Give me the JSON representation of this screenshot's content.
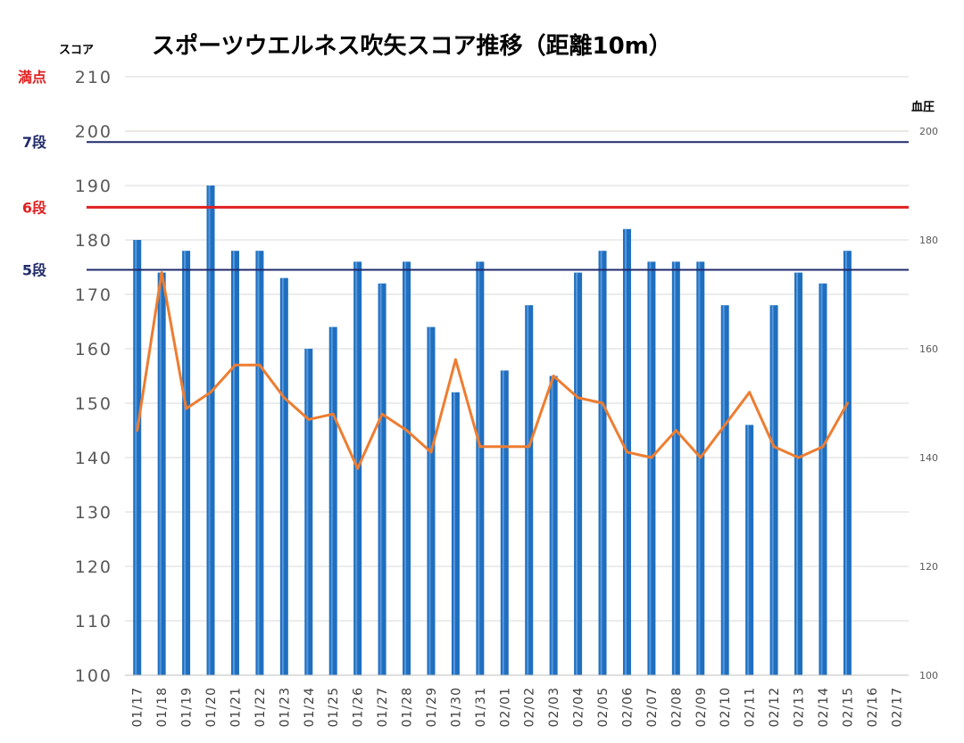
{
  "chart_data": {
    "type": "bar",
    "title": "スポーツウエルネス吹矢スコア推移（距離10m）",
    "ylabel": "スコア",
    "y2label": "血圧",
    "ylim": [
      100,
      210
    ],
    "y2lim": [
      100,
      210
    ],
    "yticks": [
      "100",
      "110",
      "120",
      "130",
      "140",
      "150",
      "160",
      "170",
      "180",
      "190",
      "200",
      "210"
    ],
    "y2ticks": [
      "100",
      "120",
      "140",
      "160",
      "180",
      "200"
    ],
    "grid": true,
    "categories": [
      "01/17",
      "01/18",
      "01/19",
      "01/20",
      "01/21",
      "01/22",
      "01/23",
      "01/24",
      "01/25",
      "01/26",
      "01/27",
      "01/28",
      "01/29",
      "01/30",
      "01/31",
      "02/01",
      "02/02",
      "02/03",
      "02/04",
      "02/05",
      "02/06",
      "02/07",
      "02/08",
      "02/09",
      "02/10",
      "02/11",
      "02/12",
      "02/13",
      "02/14",
      "02/15",
      "02/16",
      "02/17"
    ],
    "series": [
      {
        "type": "bar",
        "axis": "left",
        "color": "#1F6FC0",
        "values": [
          180,
          174,
          178,
          190,
          178,
          178,
          173,
          160,
          164,
          176,
          172,
          176,
          164,
          152,
          176,
          156,
          168,
          155,
          174,
          178,
          182,
          176,
          176,
          176,
          168,
          146,
          168,
          174,
          172,
          178,
          null,
          null
        ]
      },
      {
        "type": "line",
        "axis": "right",
        "color": "#ED7D31",
        "values": [
          145,
          174,
          149,
          152,
          157,
          157,
          151,
          147,
          148,
          138,
          148,
          145,
          141,
          158,
          142,
          142,
          142,
          155,
          151,
          150,
          141,
          140,
          145,
          140,
          146,
          152,
          142,
          140,
          142,
          150,
          null,
          null
        ]
      }
    ],
    "reference_lines": [
      {
        "label": "満点",
        "value": 210,
        "color": "#E02020",
        "line": false
      },
      {
        "label": "7段",
        "value": 198,
        "color": "#1F2A6B",
        "line": true
      },
      {
        "label": "6段",
        "value": 186,
        "color": "#E02020",
        "line": true
      },
      {
        "label": "5段",
        "value": 174.5,
        "color": "#1F2A6B",
        "line": true
      }
    ]
  }
}
